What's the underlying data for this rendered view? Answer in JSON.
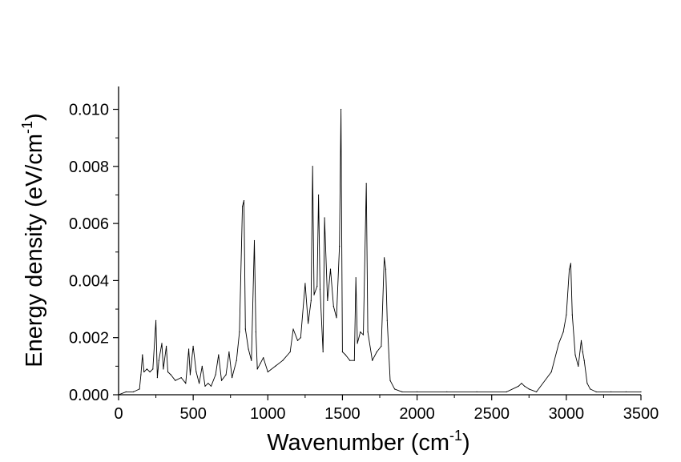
{
  "chart_data": {
    "type": "line",
    "title": "",
    "xlabel": {
      "main": "Wavenumber (cm",
      "sup": "-1",
      "end": ")"
    },
    "ylabel": {
      "main": "Energy density (eV/cm",
      "sup": "-1",
      "end": ")"
    },
    "xlim": [
      0,
      3500
    ],
    "ylim": [
      0,
      0.0108
    ],
    "x_ticks": [
      "0",
      "500",
      "1000",
      "1500",
      "2000",
      "2500",
      "3000",
      "3500"
    ],
    "y_ticks": [
      "0.000",
      "0.002",
      "0.004",
      "0.006",
      "0.008",
      "0.010"
    ],
    "grid": false,
    "legend": "none",
    "series": [
      {
        "color": "#000000",
        "x": [
          0,
          50,
          100,
          140,
          150,
          160,
          170,
          190,
          210,
          230,
          250,
          260,
          270,
          290,
          300,
          320,
          330,
          350,
          380,
          420,
          450,
          470,
          480,
          500,
          520,
          540,
          560,
          580,
          600,
          620,
          650,
          670,
          690,
          720,
          740,
          760,
          790,
          810,
          830,
          840,
          850,
          870,
          890,
          910,
          920,
          930,
          950,
          970,
          1000,
          1050,
          1100,
          1150,
          1170,
          1200,
          1220,
          1250,
          1270,
          1290,
          1300,
          1310,
          1330,
          1340,
          1350,
          1370,
          1380,
          1400,
          1420,
          1440,
          1460,
          1480,
          1490,
          1500,
          1520,
          1550,
          1580,
          1590,
          1600,
          1620,
          1640,
          1660,
          1670,
          1700,
          1730,
          1760,
          1780,
          1790,
          1800,
          1820,
          1850,
          1900,
          2000,
          2200,
          2400,
          2600,
          2680,
          2700,
          2720,
          2750,
          2800,
          2900,
          2950,
          2980,
          3000,
          3020,
          3030,
          3040,
          3060,
          3080,
          3100,
          3110,
          3120,
          3140,
          3160,
          3200,
          3300,
          3400,
          3500
        ],
        "values": [
          0.0,
          0.0001,
          0.0001,
          0.0002,
          0.0007,
          0.0014,
          0.0008,
          0.0009,
          0.0008,
          0.0009,
          0.0026,
          0.0006,
          0.0012,
          0.0018,
          0.0009,
          0.0017,
          0.0008,
          0.0007,
          0.0005,
          0.0006,
          0.0004,
          0.0016,
          0.0007,
          0.0017,
          0.0008,
          0.0004,
          0.001,
          0.0003,
          0.0004,
          0.0003,
          0.0007,
          0.0014,
          0.0005,
          0.0007,
          0.0015,
          0.0006,
          0.0012,
          0.0022,
          0.0066,
          0.0068,
          0.0023,
          0.0016,
          0.0012,
          0.0054,
          0.0022,
          0.0009,
          0.0011,
          0.0013,
          0.0008,
          0.001,
          0.0012,
          0.0015,
          0.0023,
          0.0019,
          0.002,
          0.0039,
          0.0025,
          0.0033,
          0.008,
          0.0035,
          0.0038,
          0.007,
          0.0037,
          0.0015,
          0.0062,
          0.0033,
          0.0044,
          0.0031,
          0.0027,
          0.0052,
          0.01,
          0.0015,
          0.0014,
          0.0012,
          0.0012,
          0.0041,
          0.0018,
          0.0022,
          0.0021,
          0.0074,
          0.0022,
          0.0012,
          0.0015,
          0.0017,
          0.0048,
          0.0044,
          0.0026,
          0.0005,
          0.0002,
          0.0001,
          0.0001,
          0.0001,
          0.0001,
          0.0001,
          0.0003,
          0.0004,
          0.0003,
          0.0002,
          0.0001,
          0.0008,
          0.0018,
          0.0022,
          0.0028,
          0.0044,
          0.0046,
          0.0028,
          0.0014,
          0.001,
          0.0019,
          0.0015,
          0.0012,
          0.0004,
          0.0002,
          0.0001,
          0.0001,
          0.0001,
          0.0001
        ]
      }
    ]
  }
}
